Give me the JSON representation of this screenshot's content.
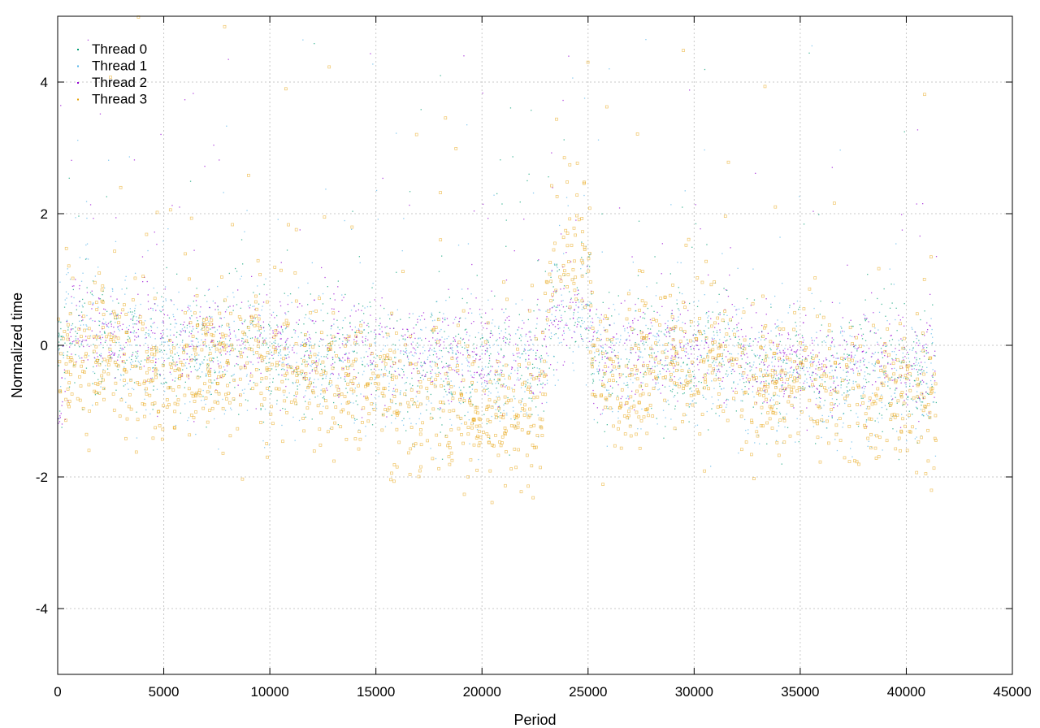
{
  "chart_data": {
    "type": "scatter",
    "title": "",
    "xlabel": "Period",
    "ylabel": "Normalized time",
    "xlim": [
      0,
      45000
    ],
    "ylim": [
      -5,
      5
    ],
    "xticks": [
      0,
      5000,
      10000,
      15000,
      20000,
      25000,
      30000,
      35000,
      40000,
      45000
    ],
    "yticks": [
      -4,
      -2,
      0,
      2,
      4
    ],
    "grid": true,
    "legend_position": "top-left",
    "x_extent": [
      0,
      41400
    ],
    "segments": [
      {
        "x": [
          0,
          400
        ],
        "means": {
          "thread_0": 0.0,
          "thread_1": -0.1,
          "thread_2": -0.9,
          "thread_3": -0.15
        }
      },
      {
        "x": [
          400,
          1500
        ],
        "means": {
          "thread_0": 0.1,
          "thread_1": 0.7,
          "thread_2": 0.25,
          "thread_3": -0.2
        }
      },
      {
        "x": [
          1500,
          3000
        ],
        "means": {
          "thread_0": 0.1,
          "thread_1": 0.3,
          "thread_2": 0.15,
          "thread_3": -0.3
        }
      },
      {
        "x": [
          3000,
          6000
        ],
        "means": {
          "thread_0": 0.0,
          "thread_1": -0.1,
          "thread_2": 0.1,
          "thread_3": -0.5
        }
      },
      {
        "x": [
          6000,
          10000
        ],
        "means": {
          "thread_0": -0.1,
          "thread_1": -0.15,
          "thread_2": 0.1,
          "thread_3": -0.35
        }
      },
      {
        "x": [
          10000,
          13000
        ],
        "means": {
          "thread_0": -0.2,
          "thread_1": -0.25,
          "thread_2": 0.0,
          "thread_3": -0.45
        }
      },
      {
        "x": [
          13000,
          16000
        ],
        "means": {
          "thread_0": -0.2,
          "thread_1": -0.3,
          "thread_2": -0.05,
          "thread_3": -0.6
        }
      },
      {
        "x": [
          16000,
          20000
        ],
        "means": {
          "thread_0": -0.3,
          "thread_1": -0.4,
          "thread_2": -0.1,
          "thread_3": -0.95
        }
      },
      {
        "x": [
          20000,
          23300
        ],
        "means": {
          "thread_0": -0.3,
          "thread_1": -0.45,
          "thread_2": -0.15,
          "thread_3": -1.1
        }
      },
      {
        "x": [
          23300,
          25300
        ],
        "means": {
          "thread_0": 0.5,
          "thread_1": 0.4,
          "thread_2": 0.5,
          "thread_3": 1.5
        }
      },
      {
        "x": [
          25300,
          28500
        ],
        "means": {
          "thread_0": -0.2,
          "thread_1": -0.3,
          "thread_2": -0.15,
          "thread_3": -0.5
        }
      },
      {
        "x": [
          28500,
          32500
        ],
        "means": {
          "thread_0": -0.1,
          "thread_1": -0.2,
          "thread_2": -0.1,
          "thread_3": -0.2
        }
      },
      {
        "x": [
          32500,
          36000
        ],
        "means": {
          "thread_0": -0.35,
          "thread_1": -0.5,
          "thread_2": -0.25,
          "thread_3": -0.6
        }
      },
      {
        "x": [
          36000,
          41400
        ],
        "means": {
          "thread_0": -0.4,
          "thread_1": -0.6,
          "thread_2": -0.3,
          "thread_3": -0.9
        }
      }
    ],
    "series": [
      {
        "name": "Thread 0",
        "color": "#009e73",
        "marker": "dot"
      },
      {
        "name": "Thread 1",
        "color": "#56b4e9",
        "marker": "dot"
      },
      {
        "name": "Thread 2",
        "color": "#9400d3",
        "marker": "dot"
      },
      {
        "name": "Thread 3",
        "color": "#e69f00",
        "marker": "open-square"
      }
    ]
  }
}
